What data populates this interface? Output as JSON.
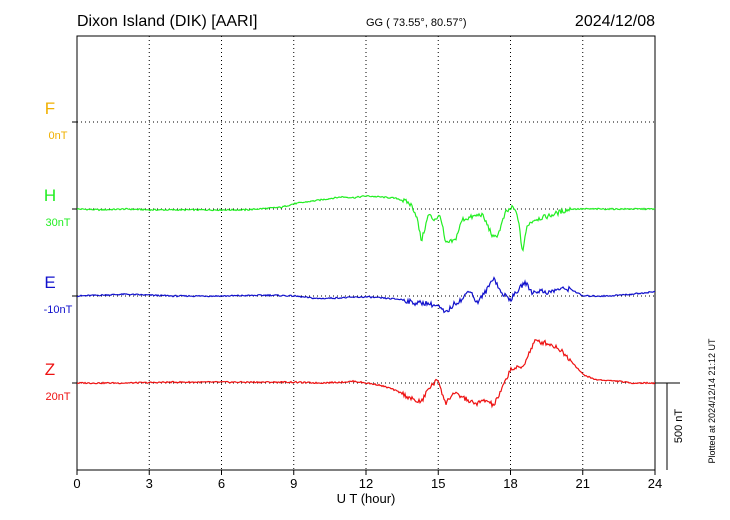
{
  "chart_data": {
    "type": "line",
    "title": "Dixon Island (DIK)  [AARI]",
    "subtitle": "GG ( 73.55°,  80.57°)",
    "date": "2024/12/08",
    "xlabel": "U T (hour)",
    "xlim": [
      0,
      24
    ],
    "xticks": [
      "0",
      "3",
      "6",
      "9",
      "12",
      "15",
      "18",
      "21",
      "24"
    ],
    "scale_label": "500 nT",
    "scale_nT": 500,
    "footer": "Plotted at 2024/12/14 21:12 UT",
    "grid": true,
    "series": [
      {
        "name": "F",
        "offset": "0nT",
        "color": "#f0b000",
        "x": [],
        "y": []
      },
      {
        "name": "H",
        "offset": "30nT",
        "color": "#22ee22",
        "x": [
          0,
          1,
          2,
          3,
          4,
          5,
          6,
          7,
          8,
          8.5,
          9,
          9.5,
          10,
          10.5,
          11,
          11.5,
          12,
          12.5,
          13,
          13.3,
          13.7,
          13.9,
          14.1,
          14.3,
          14.6,
          14.8,
          15.1,
          15.3,
          15.7,
          16,
          16.3,
          16.8,
          17,
          17.3,
          17.5,
          17.8,
          18.1,
          18.3,
          18.5,
          18.7,
          19,
          19.3,
          19.6,
          20,
          20.5,
          21,
          22,
          23,
          24
        ],
        "y": [
          0,
          -5,
          0,
          -5,
          -5,
          -5,
          -5,
          -5,
          5,
          10,
          30,
          40,
          50,
          60,
          70,
          65,
          75,
          70,
          65,
          60,
          40,
          20,
          -40,
          -185,
          -30,
          -60,
          -40,
          -200,
          -180,
          -60,
          -50,
          -30,
          -80,
          -170,
          -140,
          -20,
          10,
          -40,
          -250,
          -90,
          -60,
          -50,
          -40,
          -20,
          0,
          0,
          0,
          0,
          0
        ]
      },
      {
        "name": "E",
        "offset": "-10nT",
        "color": "#1111cc",
        "x": [
          0,
          2,
          4,
          6,
          8,
          9,
          10,
          11,
          12,
          13,
          13.5,
          14,
          14.5,
          15,
          15.3,
          15.7,
          16,
          16.3,
          16.6,
          17,
          17.3,
          17.6,
          18,
          18.3,
          18.6,
          18.9,
          19.2,
          19.6,
          20,
          20.5,
          21,
          22,
          23,
          24
        ],
        "y": [
          0,
          10,
          0,
          0,
          5,
          0,
          -15,
          -10,
          -5,
          -15,
          -20,
          -40,
          -40,
          -60,
          -100,
          -40,
          -20,
          40,
          -40,
          30,
          110,
          20,
          -20,
          30,
          80,
          20,
          30,
          20,
          40,
          40,
          0,
          0,
          10,
          25
        ]
      },
      {
        "name": "Z",
        "offset": "20nT",
        "color": "#ee1111",
        "x": [
          0,
          2,
          4,
          6,
          8,
          9,
          10,
          11,
          11.5,
          12,
          12.5,
          13,
          13.5,
          14,
          14.3,
          14.6,
          15,
          15.3,
          15.6,
          16,
          16.5,
          17,
          17.3,
          17.6,
          18,
          18.5,
          19,
          19.5,
          20,
          20.5,
          21,
          21.5,
          22,
          22.5,
          23,
          24
        ],
        "y": [
          0,
          0,
          5,
          5,
          5,
          5,
          0,
          5,
          10,
          0,
          -10,
          -30,
          -60,
          -100,
          -110,
          -30,
          20,
          -120,
          -60,
          -80,
          -120,
          -100,
          -130,
          -50,
          80,
          90,
          240,
          230,
          200,
          130,
          50,
          20,
          15,
          10,
          0,
          0
        ]
      }
    ]
  }
}
